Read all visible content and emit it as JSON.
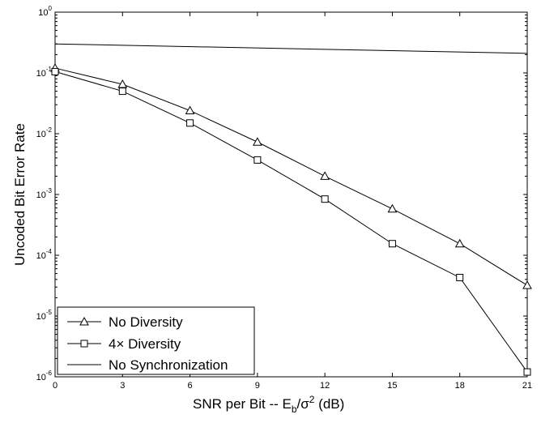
{
  "chart_data": {
    "type": "line",
    "xlabel": "SNR per Bit -- E_b/σ^2 (dB)",
    "xlabel_parts": {
      "pre": "SNR per Bit -- E",
      "sub": "b",
      "mid": "/σ",
      "sup": "2",
      "post": " (dB)"
    },
    "ylabel": "Uncoded Bit Error Rate",
    "x_scale": "linear",
    "y_scale": "log",
    "xlim": [
      0,
      21
    ],
    "ylim": [
      1e-06,
      1
    ],
    "x_ticks": [
      "0",
      "3",
      "6",
      "9",
      "12",
      "15",
      "18",
      "21"
    ],
    "y_ticks": [
      {
        "base": "10",
        "exp": "0"
      },
      {
        "base": "10",
        "exp": "-1"
      },
      {
        "base": "10",
        "exp": "-2"
      },
      {
        "base": "10",
        "exp": "-3"
      },
      {
        "base": "10",
        "exp": "-4"
      },
      {
        "base": "10",
        "exp": "-5"
      },
      {
        "base": "10",
        "exp": "-6"
      }
    ],
    "grid": false,
    "legend_position": "bottom-left",
    "series": [
      {
        "name": "No Diversity",
        "marker": "triangle",
        "x": [
          0,
          3,
          6,
          9,
          12,
          15,
          18,
          21
        ],
        "y": [
          0.12,
          0.065,
          0.024,
          0.0073,
          0.002,
          0.00058,
          0.000155,
          3.2e-05
        ]
      },
      {
        "name": "4× Diversity",
        "marker": "square",
        "x": [
          0,
          3,
          6,
          9,
          12,
          15,
          18,
          21
        ],
        "y": [
          0.105,
          0.05,
          0.015,
          0.0037,
          0.00084,
          0.000155,
          4.3e-05,
          1.2e-06
        ]
      },
      {
        "name": "No Synchronization",
        "marker": "none",
        "x": [
          0,
          21
        ],
        "y": [
          0.3,
          0.21
        ]
      }
    ]
  }
}
